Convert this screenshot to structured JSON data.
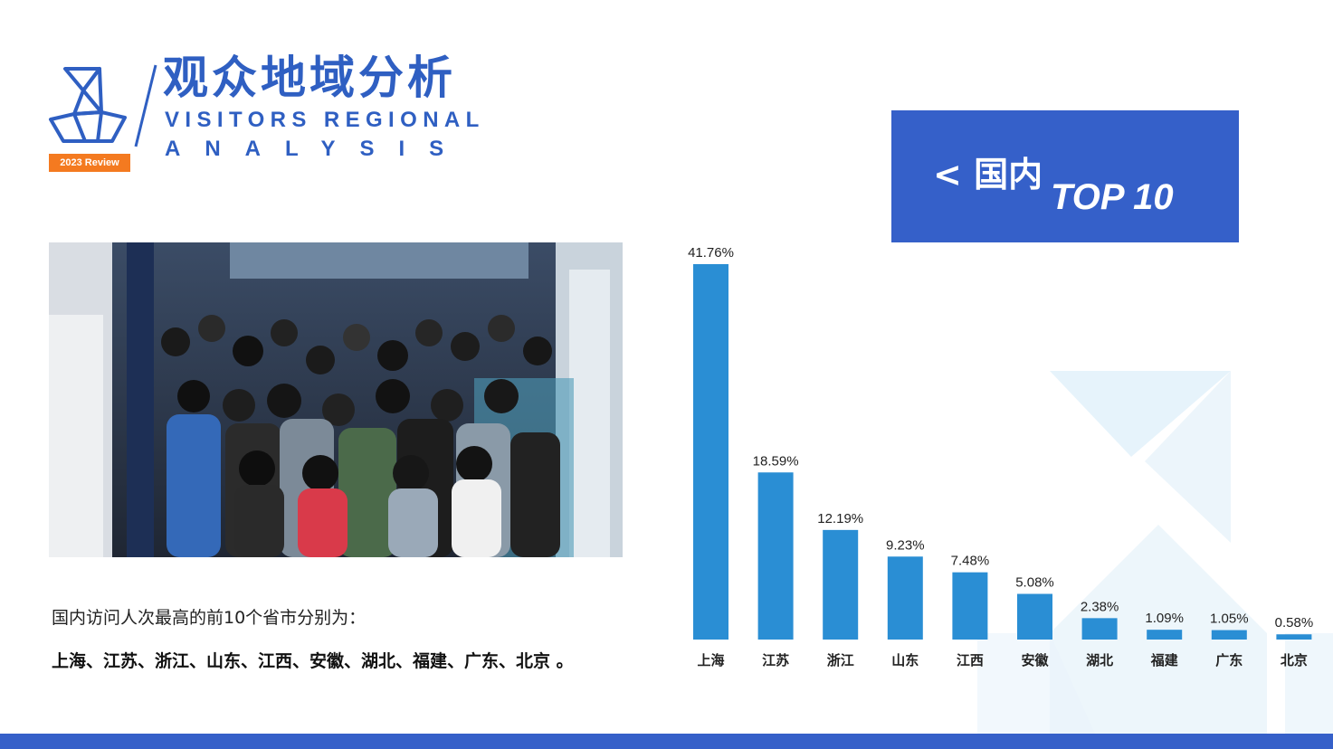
{
  "header": {
    "title_cn": "观众地域分析",
    "title_en_line1": "VISITORS REGIONAL",
    "title_en_line2": "ANALYSIS",
    "badge": "2023 Review"
  },
  "top_box": {
    "label": "< 国内",
    "sub": "TOP 10"
  },
  "description": {
    "line1": "国内访问人次最高的前10个省市分别为：",
    "line2": "上海、江苏、浙江、山东、江西、安徽、湖北、福建、广东、北京 。"
  },
  "colors": {
    "accent": "#2f5fc2",
    "box": "#3560c9",
    "bar": "#2a8ed4",
    "badge": "#f47a20"
  },
  "chart_data": {
    "type": "bar",
    "categories": [
      "上海",
      "江苏",
      "浙江",
      "山东",
      "江西",
      "安徽",
      "湖北",
      "福建",
      "广东",
      "北京"
    ],
    "values": [
      41.76,
      18.59,
      12.19,
      9.23,
      7.48,
      5.08,
      2.38,
      1.09,
      1.05,
      0.58
    ],
    "value_labels": [
      "41.76%",
      "18.59%",
      "12.19%",
      "9.23%",
      "7.48%",
      "5.08%",
      "2.38%",
      "1.09%",
      "1.05%",
      "0.58%"
    ],
    "title": "",
    "xlabel": "",
    "ylabel": "",
    "unit": "%",
    "ylim": [
      0,
      41.76
    ],
    "grid": false
  }
}
